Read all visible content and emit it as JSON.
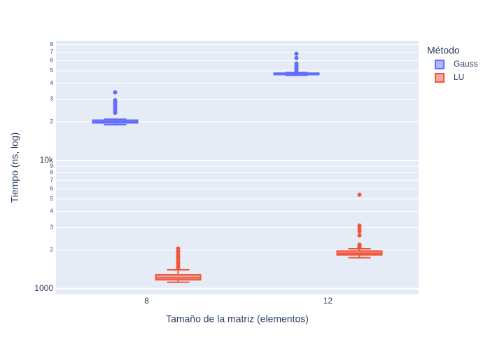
{
  "chart_data": {
    "type": "box",
    "xlabel": "Tamaño de la matriz (elementos)",
    "ylabel": "Tiempo (ns, log)",
    "legend_title": "Método",
    "legend": "right",
    "categories": [
      "8",
      "12"
    ],
    "log_y": true,
    "grid": true,
    "ylim": [
      900,
      86000
    ],
    "yticks": [
      1000,
      {
        "value": 2000,
        "label": "2"
      },
      {
        "value": 3000,
        "label": "3"
      },
      {
        "value": 4000,
        "label": "4"
      },
      {
        "value": 5000,
        "label": "5"
      },
      {
        "value": 6000,
        "label": "6"
      },
      {
        "value": 7000,
        "label": "7"
      },
      {
        "value": 8000,
        "label": "8"
      },
      {
        "value": 9000,
        "label": "9"
      },
      {
        "value": 10000,
        "label": "10k"
      },
      {
        "value": 20000,
        "label": "2"
      },
      {
        "value": 30000,
        "label": "3"
      },
      {
        "value": 40000,
        "label": "4"
      },
      {
        "value": 50000,
        "label": "5"
      },
      {
        "value": 60000,
        "label": "6"
      },
      {
        "value": 70000,
        "label": "7"
      },
      {
        "value": 80000,
        "label": "8"
      }
    ],
    "series": [
      {
        "name": "Gauss",
        "color": "#636efa",
        "lower": [
          19000,
          46200
        ],
        "q1": [
          19600,
          46700
        ],
        "median": [
          20000,
          47200
        ],
        "q3": [
          20600,
          48000
        ],
        "upper": [
          21000,
          48500
        ],
        "outliers": [
          [
            23500,
            24500,
            25500,
            26500,
            27500,
            28500,
            29500,
            34000
          ],
          [
            50000,
            51500,
            53000,
            55000,
            57000,
            63000,
            68000
          ]
        ]
      },
      {
        "name": "LU",
        "color": "#ef553b",
        "lower": [
          1120,
          1740
        ],
        "q1": [
          1170,
          1830
        ],
        "median": [
          1210,
          1880
        ],
        "q3": [
          1280,
          1960
        ],
        "upper": [
          1400,
          2040
        ],
        "outliers": [
          [
            1450,
            1500,
            1560,
            1620,
            1700,
            1780,
            1850,
            1950,
            2050
          ],
          [
            2100,
            2150,
            2200,
            2600,
            2800,
            2950,
            3100,
            5400
          ]
        ]
      }
    ]
  }
}
